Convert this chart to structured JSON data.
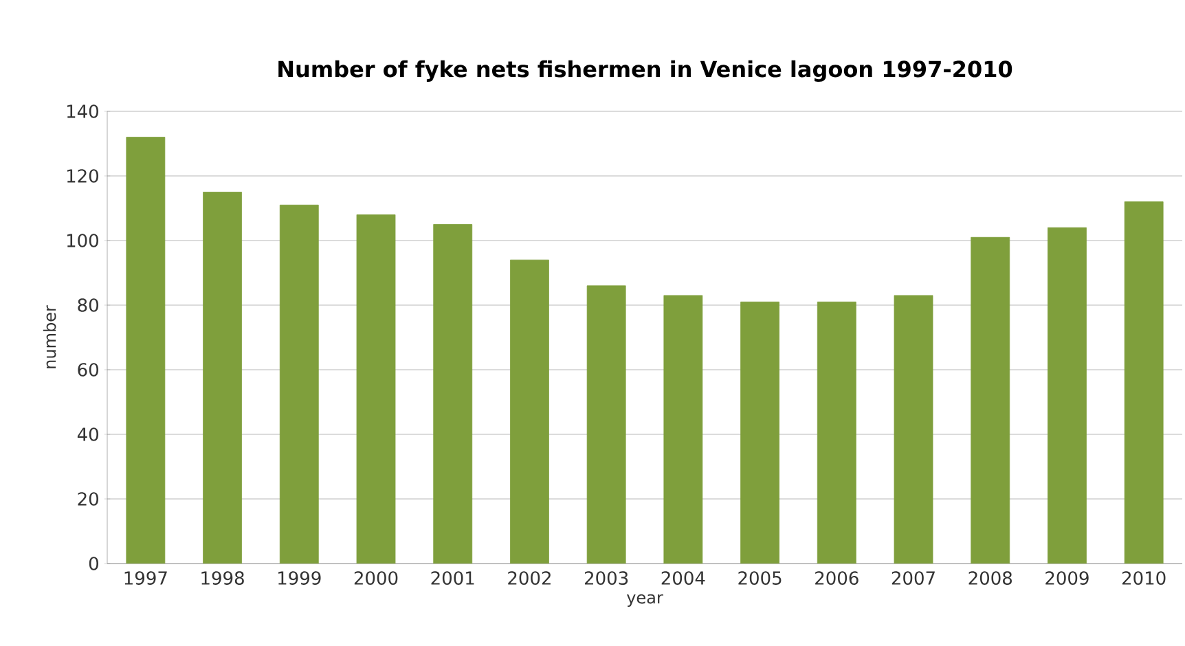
{
  "chart_data": {
    "type": "bar",
    "title": "Number of fyke nets fishermen in Venice lagoon 1997-2010",
    "xlabel": "year",
    "ylabel": "number",
    "categories": [
      "1997",
      "1998",
      "1999",
      "2000",
      "2001",
      "2002",
      "2003",
      "2004",
      "2005",
      "2006",
      "2007",
      "2008",
      "2009",
      "2010"
    ],
    "values": [
      132,
      115,
      111,
      108,
      105,
      94,
      86,
      83,
      81,
      81,
      83,
      101,
      104,
      112
    ],
    "color": "#7f9f3c",
    "ylim": [
      0,
      140
    ],
    "yticks": [
      0,
      20,
      40,
      60,
      80,
      100,
      120,
      140
    ],
    "grid": "y"
  }
}
